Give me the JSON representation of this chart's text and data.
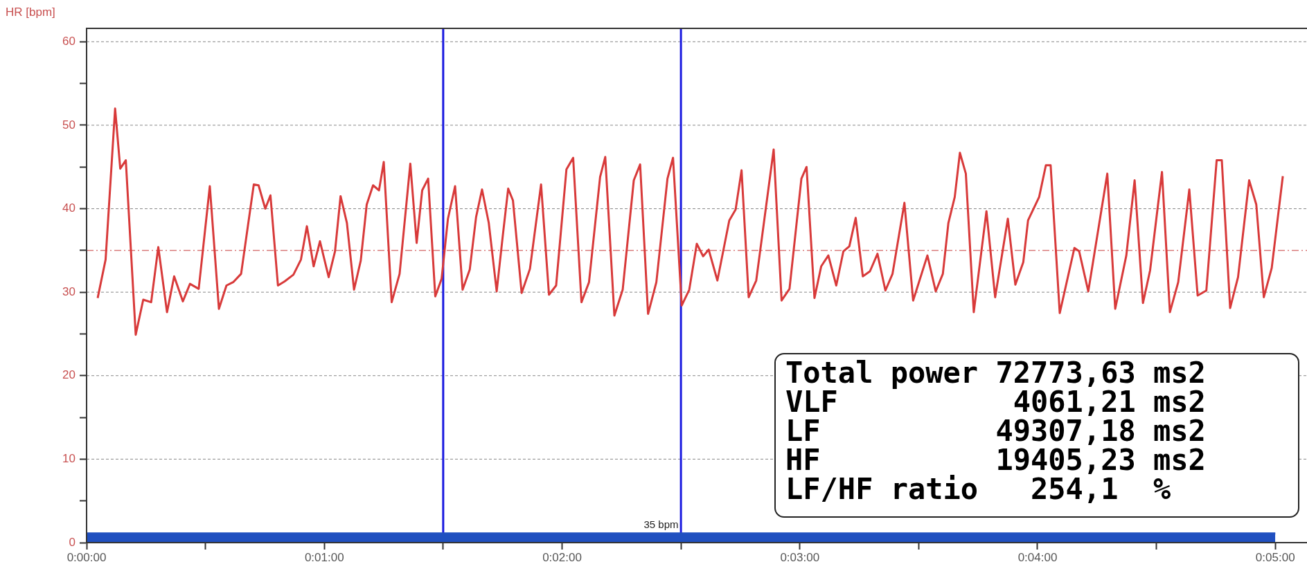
{
  "chart_data": {
    "type": "line",
    "ylabel": "HR [bpm]",
    "x": [
      2.8,
      4.8,
      7.2,
      8.5,
      9.9,
      12.4,
      14.3,
      16.3,
      18.1,
      20.3,
      22.1,
      24.3,
      26.1,
      28.3,
      31.1,
      33.4,
      35.3,
      37.0,
      39.0,
      42.2,
      43.4,
      45.1,
      46.4,
      48.3,
      50.0,
      52.2,
      54.1,
      55.6,
      57.3,
      58.9,
      61.1,
      62.7,
      64.1,
      65.7,
      67.5,
      69.2,
      70.7,
      72.3,
      73.8,
      75.0,
      77.0,
      79.0,
      81.7,
      83.3,
      84.7,
      86.2,
      88.0,
      89.6,
      91.2,
      93.0,
      94.9,
      96.7,
      98.3,
      99.8,
      101.5,
      103.5,
      105.0,
      106.4,
      107.6,
      109.8,
      111.9,
      114.7,
      116.7,
      118.5,
      121.1,
      122.8,
      124.9,
      126.8,
      129.6,
      130.9,
      133.2,
      135.3,
      138.1,
      139.7,
      141.7,
      143.8,
      146.6,
      148.0,
      150.2,
      152.1,
      154.0,
      155.6,
      157.0,
      159.2,
      162.2,
      163.8,
      165.3,
      167.1,
      169.0,
      173.4,
      175.4,
      177.4,
      180.4,
      181.7,
      183.7,
      185.4,
      187.2,
      189.2,
      191.0,
      192.5,
      194.1,
      195.9,
      197.7,
      199.6,
      201.6,
      203.4,
      206.4,
      208.6,
      212.2,
      214.3,
      216.1,
      217.5,
      219.1,
      220.4,
      221.9,
      223.9,
      227.1,
      229.3,
      232.5,
      234.4,
      236.4,
      237.6,
      240.4,
      242.1,
      243.3,
      245.6,
      249.3,
      250.5,
      252.8,
      257.6,
      259.6,
      262.4,
      264.5,
      266.6,
      268.4,
      271.4,
      273.4,
      275.5,
      278.3,
      280.4,
      282.6,
      285.2,
      286.5,
      288.6,
      290.6,
      293.4,
      295.2,
      297.1,
      299.1,
      301.9
    ],
    "series": [
      {
        "color": "#d83a3a",
        "values": [
          29.3,
          33.9,
          52.0,
          44.8,
          45.8,
          24.9,
          29.1,
          28.8,
          35.4,
          27.6,
          31.9,
          28.9,
          31.0,
          30.4,
          42.7,
          28.0,
          30.8,
          31.2,
          32.2,
          42.9,
          42.8,
          40.0,
          41.6,
          30.8,
          31.3,
          32.1,
          33.9,
          37.9,
          33.1,
          36.1,
          31.8,
          34.9,
          41.5,
          38.3,
          30.3,
          33.8,
          40.5,
          42.8,
          42.2,
          45.6,
          28.8,
          32.2,
          45.4,
          35.9,
          42.2,
          43.6,
          29.5,
          31.6,
          38.8,
          42.7,
          30.3,
          32.7,
          39.0,
          42.3,
          38.3,
          30.1,
          36.6,
          42.4,
          41.0,
          29.9,
          32.8,
          42.9,
          29.7,
          30.8,
          44.7,
          46.1,
          28.8,
          31.2,
          43.8,
          46.2,
          27.2,
          30.3,
          43.4,
          45.3,
          27.4,
          31.2,
          43.6,
          46.1,
          28.4,
          30.3,
          35.8,
          34.3,
          35.1,
          31.4,
          38.6,
          39.9,
          44.6,
          29.4,
          31.4,
          47.1,
          29.0,
          30.4,
          43.6,
          45.0,
          29.3,
          33.1,
          34.4,
          30.8,
          34.9,
          35.5,
          38.9,
          31.9,
          32.5,
          34.6,
          30.2,
          32.2,
          40.7,
          29.0,
          34.4,
          30.1,
          32.2,
          38.3,
          41.4,
          46.7,
          44.2,
          27.6,
          39.7,
          29.4,
          38.8,
          30.9,
          33.6,
          38.6,
          41.4,
          45.2,
          45.2,
          27.5,
          35.3,
          34.9,
          30.1,
          44.2,
          28.0,
          34.4,
          43.4,
          28.7,
          32.6,
          44.4,
          27.6,
          31.2,
          42.3,
          29.6,
          30.2,
          45.8,
          45.8,
          28.1,
          31.8,
          43.4,
          40.5,
          29.4,
          32.9,
          43.9
        ]
      },
      {
        "type": "area",
        "color": "#2050c0",
        "x": [
          0,
          300
        ],
        "values": [
          1.1,
          1.1
        ]
      }
    ],
    "xlim": [
      0,
      308
    ],
    "ylim": [
      0,
      61.6
    ],
    "xticks": [
      {
        "value": 0,
        "label": "0:00:00"
      },
      {
        "value": 30,
        "label": null
      },
      {
        "value": 60,
        "label": "0:01:00"
      },
      {
        "value": 90,
        "label": null
      },
      {
        "value": 120,
        "label": "0:02:00"
      },
      {
        "value": 150,
        "label": null
      },
      {
        "value": 180,
        "label": "0:03:00"
      },
      {
        "value": 210,
        "label": null
      },
      {
        "value": 240,
        "label": "0:04:00"
      },
      {
        "value": 270,
        "label": null
      },
      {
        "value": 300,
        "label": "0:05:00"
      }
    ],
    "yticks": [
      0,
      {
        "value": 5,
        "label": null
      },
      10,
      {
        "value": 15,
        "label": null
      },
      20,
      {
        "value": 25,
        "label": null
      },
      30,
      {
        "value": 35,
        "label": null
      },
      40,
      {
        "value": 45,
        "label": null
      },
      50,
      {
        "value": 55,
        "label": null
      },
      60
    ],
    "grid": "y",
    "legend": false,
    "marker": "none",
    "line_style": "solid",
    "ref_lines": [
      {
        "axis": "x",
        "value": 90,
        "color": "#1a1ae0",
        "line_style": "solid"
      },
      {
        "axis": "x",
        "value": 150,
        "color": "#1a1ae0",
        "line_style": "solid"
      },
      {
        "axis": "y",
        "value": 35,
        "color": "#c84040",
        "line_style": "dashdot"
      }
    ],
    "annotations": [
      {
        "text": "35 bpm",
        "x": 145,
        "y": 1.2
      },
      "Total power 72773,63 ms2",
      "VLF          4061,21 ms2",
      "LF          49307,18 ms2",
      "HF          19405,23 ms2",
      "LF/HF ratio   254,1  %"
    ]
  }
}
